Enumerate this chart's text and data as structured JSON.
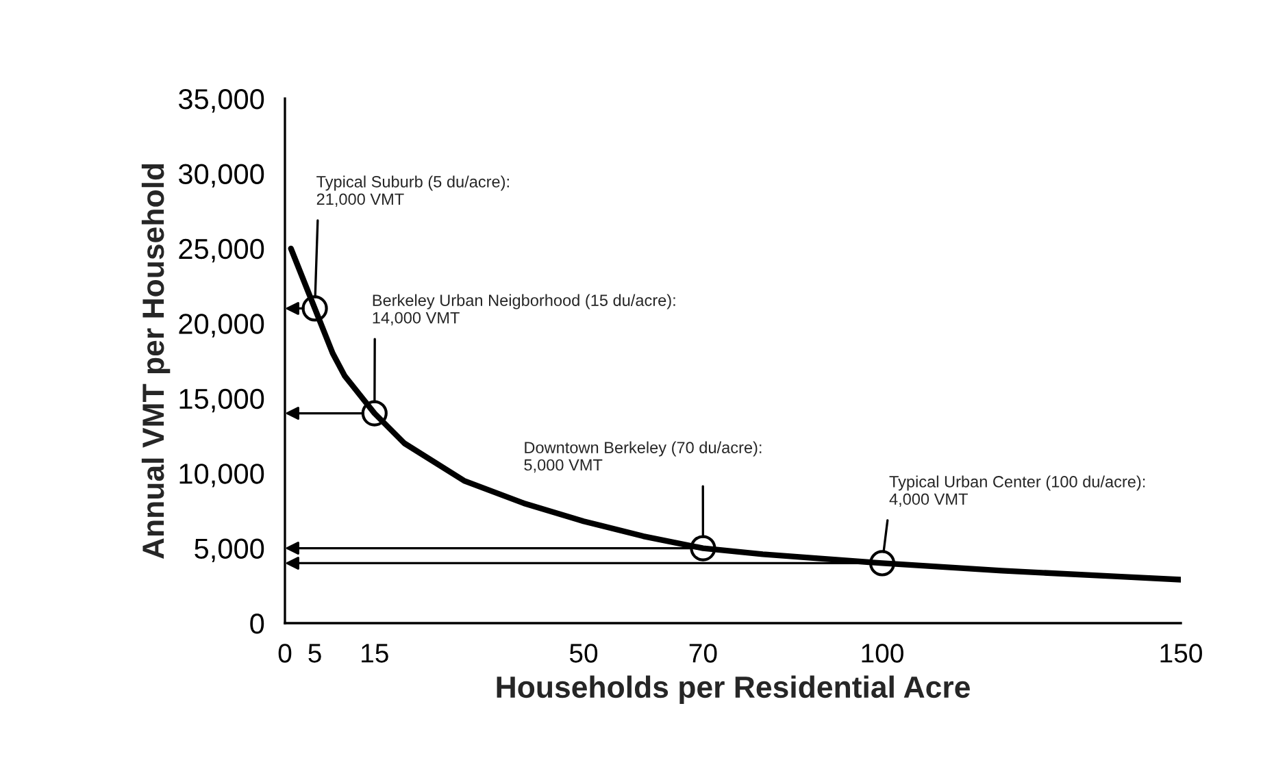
{
  "chart_data": {
    "type": "line",
    "xlabel": "Households per Residential Acre",
    "ylabel": "Annual VMT per Household",
    "xlim": [
      0,
      150
    ],
    "ylim": [
      0,
      35000
    ],
    "xticks": [
      0,
      5,
      15,
      50,
      70,
      100,
      150
    ],
    "yticks": [
      {
        "value": 0,
        "label": "0"
      },
      {
        "value": 5000,
        "label": "5,000"
      },
      {
        "value": 10000,
        "label": "10,000"
      },
      {
        "value": 15000,
        "label": "15,000"
      },
      {
        "value": 20000,
        "label": "20,000"
      },
      {
        "value": 25000,
        "label": "25,000"
      },
      {
        "value": 30000,
        "label": "30,000"
      },
      {
        "value": 35000,
        "label": "35,000"
      }
    ],
    "grid": false,
    "series": [
      {
        "color": "#000000",
        "marker": "none",
        "x": [
          1,
          3,
          5,
          8,
          10,
          15,
          20,
          30,
          40,
          50,
          60,
          70,
          80,
          90,
          100,
          120,
          140,
          150
        ],
        "values": [
          25000,
          23000,
          21000,
          18000,
          16500,
          14000,
          12000,
          9500,
          8000,
          6800,
          5800,
          5000,
          4600,
          4300,
          4000,
          3500,
          3100,
          2900
        ]
      },
      {
        "type": "scatter",
        "color": "#000000",
        "marker": "circle",
        "x": [
          5,
          15,
          70,
          100
        ],
        "values": [
          21000,
          14000,
          5000,
          4000
        ]
      }
    ],
    "annotations": [
      {
        "text": "Typical Suburb (5 du/acre):\n21,000 VMT",
        "x": 5,
        "y": 21000
      },
      {
        "text": "Berkeley Urban Neigborhood (15 du/acre):\n14,000 VMT",
        "x": 15,
        "y": 14000
      },
      {
        "text": "Downtown Berkeley (70 du/acre):\n5,000 VMT",
        "x": 70,
        "y": 5000
      },
      {
        "text": "Typical Urban Center (100 du/acre):\n4,000 VMT",
        "x": 100,
        "y": 4000
      }
    ]
  }
}
